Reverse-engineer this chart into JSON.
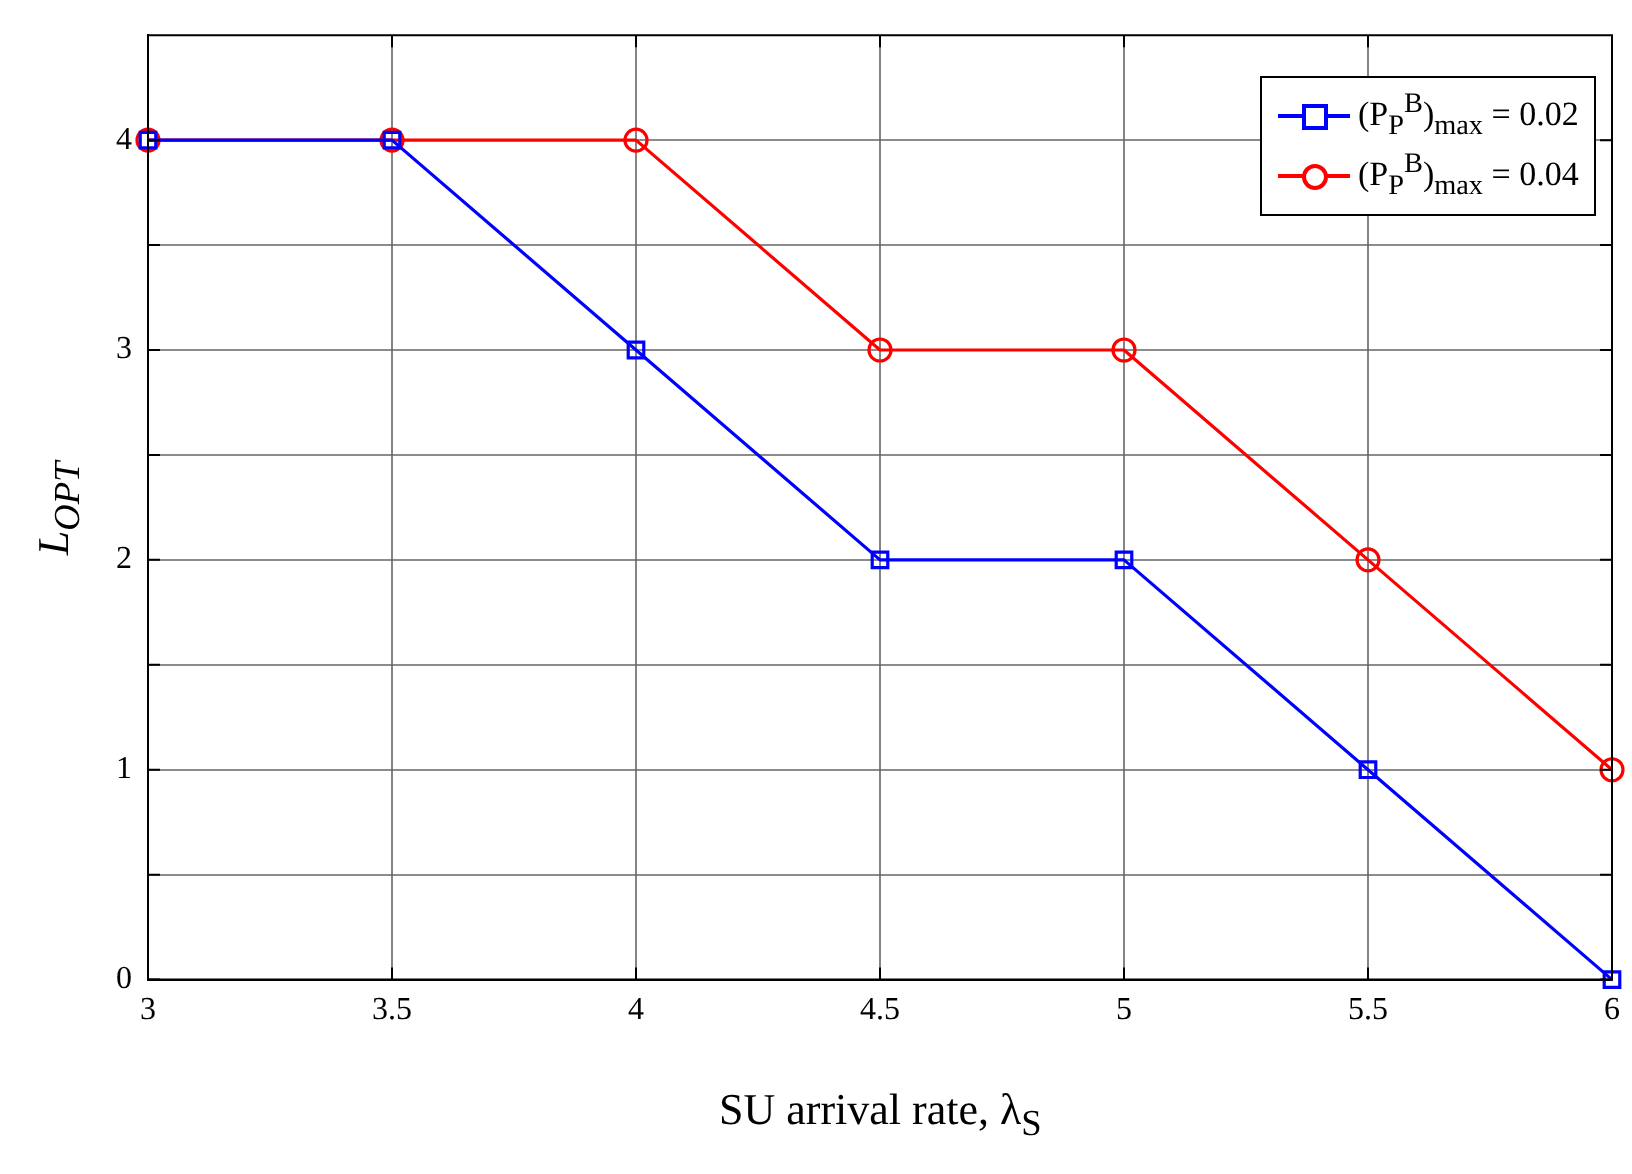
{
  "chart_data": {
    "type": "line",
    "xlabel": "SU arrival rate, λ$_{S}$",
    "ylabel": "L$_{OPT}$",
    "x": [
      3,
      3.5,
      4,
      4.5,
      5,
      5.5,
      6
    ],
    "series": [
      {
        "name": "(P$_{P}$$^{B}$)$_{max}$ = 0.02",
        "color": "#0000ff",
        "marker": "square",
        "values": [
          4,
          4,
          3,
          2,
          2,
          1,
          0
        ]
      },
      {
        "name": "(P$_{P}$$^{B}$)$_{max}$ = 0.04",
        "color": "#ff0000",
        "marker": "circle",
        "values": [
          4,
          4,
          4,
          3,
          3,
          2,
          1
        ]
      }
    ],
    "xlim": [
      3,
      6
    ],
    "xticks": [
      3,
      3.5,
      4,
      4.5,
      5,
      5.5,
      6
    ],
    "ylim": [
      0,
      4.5
    ],
    "yticks": [
      0,
      {
        "value": 0.5,
        "label": null
      },
      1,
      {
        "value": 1.5,
        "label": null
      },
      2,
      {
        "value": 2.5,
        "label": null
      },
      3,
      {
        "value": 3.5,
        "label": null
      },
      4
    ],
    "grid": true,
    "legend": "top right",
    "line_style": "solid"
  }
}
